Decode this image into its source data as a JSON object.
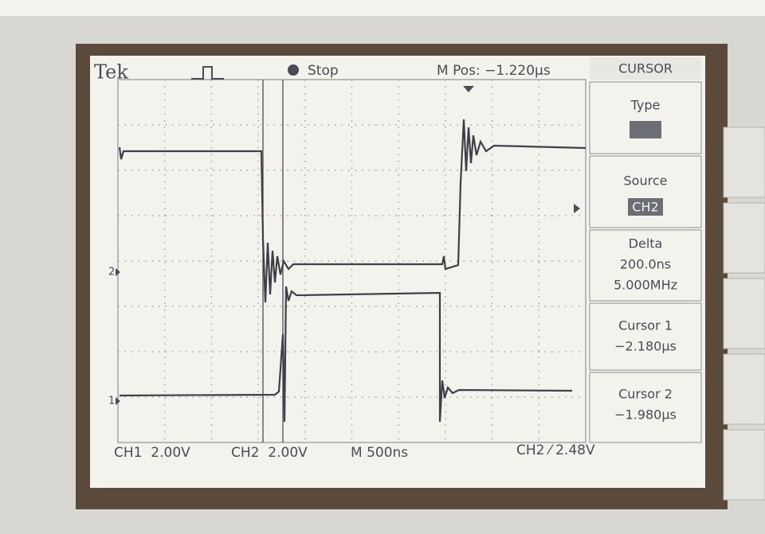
{
  "header": {
    "brand": "Tek",
    "status": "Stop",
    "position": "M Pos: −1.220µs"
  },
  "menu": {
    "title": "CURSOR",
    "type": {
      "label": "Type"
    },
    "source": {
      "label": "Source",
      "value": "CH2"
    },
    "delta": {
      "label": "Delta",
      "time": "200.0ns",
      "frequency": "5.000MHz"
    },
    "cursor1": {
      "label": "Cursor 1",
      "value": "−2.180µs"
    },
    "cursor2": {
      "label": "Cursor 2",
      "value": "−1.980µs"
    }
  },
  "markers": {
    "ch2": "2",
    "ch1": "1"
  },
  "footer": {
    "ch1": "CH1  2.00V",
    "ch2": "CH2  2.00V",
    "timebase": "M 500ns",
    "trigger": "CH2 ⁄ 2.48V"
  }
}
